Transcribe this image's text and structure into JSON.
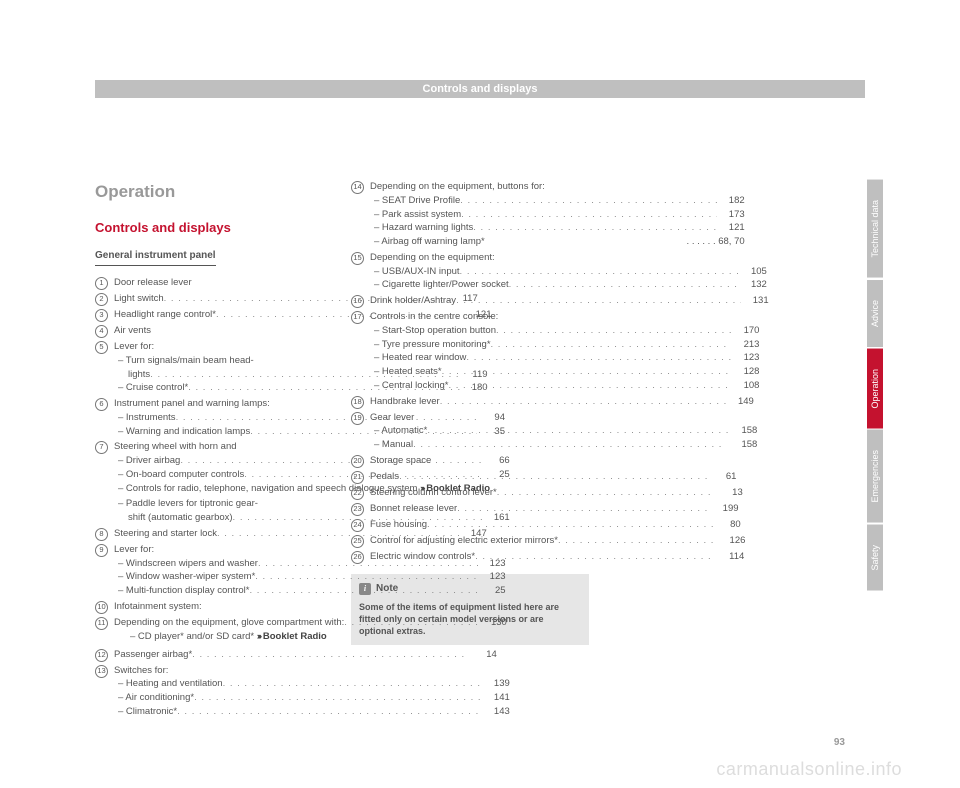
{
  "header": "Controls and displays",
  "headings": {
    "h1": "Operation",
    "h2": "Controls and displays",
    "h3": "General instrument panel"
  },
  "tabs": [
    {
      "label": "Technical data",
      "active": false
    },
    {
      "label": "Advice",
      "active": false
    },
    {
      "label": "Operation",
      "active": true
    },
    {
      "label": "Emergencies",
      "active": false
    },
    {
      "label": "Safety",
      "active": false
    }
  ],
  "note": {
    "title": "Note",
    "icon": "i",
    "body": "Some of the items of equipment listed here are fitted only on certain model versions or are optional extras."
  },
  "page_number": "93",
  "watermark": "carmanualsonline.info",
  "booklet_ref": "Booklet Radio",
  "items": [
    {
      "n": "1",
      "text": "Door release lever"
    },
    {
      "n": "2",
      "text": "Light switch",
      "page": "117"
    },
    {
      "n": "3",
      "text": "Headlight range control*",
      "page": "121"
    },
    {
      "n": "4",
      "text": "Air vents"
    },
    {
      "n": "5",
      "text": "Lever for:",
      "subs": [
        {
          "pre": "– Turn signals/main beam head-",
          "text": "lights",
          "page": "119"
        },
        {
          "text": "– Cruise control*",
          "page": "180"
        }
      ]
    },
    {
      "n": "6",
      "text": "Instrument panel and warning lamps:",
      "subs": [
        {
          "text": "– Instruments",
          "page": "94"
        },
        {
          "text": "– Warning and indication lamps",
          "page": "35"
        }
      ]
    },
    {
      "n": "7",
      "text": "Steering wheel with horn and",
      "subs": [
        {
          "text": "– Driver airbag",
          "page": "66"
        },
        {
          "text": "– On-board computer controls",
          "page": "25"
        },
        {
          "plain": "– Controls for radio, telephone, navigation and speech dialogue system ",
          "booklet": true
        },
        {
          "pre": "– Paddle levers for tiptronic gear-",
          "text": "shift (automatic gearbox)",
          "page": "161"
        }
      ]
    },
    {
      "n": "8",
      "text": "Steering and starter lock",
      "page": "147"
    },
    {
      "n": "9",
      "text": "Lever for:",
      "subs": [
        {
          "text": "– Windscreen wipers and washer",
          "page": "123"
        },
        {
          "text": "– Window washer-wiper system*",
          "page": "123"
        },
        {
          "text": "– Multi-function display control*",
          "page": "25"
        }
      ]
    },
    {
      "n": "10",
      "text": "Infotainment system:"
    },
    {
      "n": "11",
      "text": "Depending on the equipment, glove compartment with:",
      "page": "130",
      "subs": [
        {
          "plain": "– CD player* and/or SD card* ",
          "booklet": true,
          "indent": true
        }
      ]
    },
    {
      "n": "12",
      "text": "Passenger airbag*",
      "page": "14"
    },
    {
      "n": "13",
      "text": "Switches for:",
      "subs": [
        {
          "text": "– Heating and ventilation",
          "page": "139"
        },
        {
          "text": "– Air conditioning*",
          "page": "141"
        },
        {
          "text": "– Climatronic*",
          "page": "143"
        }
      ]
    },
    {
      "n": "14",
      "text": "Depending on the equipment, but­tons for:",
      "subs": [
        {
          "text": "– SEAT Drive Profile",
          "page": "182"
        },
        {
          "text": "– Park assist system",
          "page": "173"
        },
        {
          "text": "– Hazard warning lights",
          "page": "121"
        },
        {
          "text": "– Airbag off warning lamp*",
          "page": "68, 70",
          "nodots": true
        }
      ]
    },
    {
      "n": "15",
      "text": "Depending on the equipment:",
      "subs": [
        {
          "text": "– USB/AUX-IN input",
          "page": "105"
        },
        {
          "text": "– Cigarette lighter/Power socket",
          "page": "132"
        }
      ]
    },
    {
      "n": "16",
      "text": "Drink holder/Ashtray",
      "page": "131"
    },
    {
      "n": "17",
      "text": "Controls in the centre console:",
      "subs": [
        {
          "text": "– Start-Stop operation button",
          "page": "170"
        },
        {
          "text": "– Tyre pressure monitoring*",
          "page": "213"
        },
        {
          "text": "– Heated rear window",
          "page": "123"
        },
        {
          "text": "– Heated seats*",
          "page": "128"
        },
        {
          "text": "– Central locking*",
          "page": "108"
        }
      ]
    },
    {
      "n": "18",
      "text": "Handbrake lever",
      "page": "149"
    },
    {
      "n": "19",
      "text": "Gear lever",
      "subs": [
        {
          "text": "– Automatic*",
          "page": "158"
        },
        {
          "text": "– Manual",
          "page": "158"
        }
      ]
    },
    {
      "n": "20",
      "text": "Storage space"
    },
    {
      "n": "21",
      "text": "Pedals",
      "page": "61"
    },
    {
      "n": "22",
      "text": "Steering column control lever*",
      "page": "13"
    },
    {
      "n": "23",
      "text": "Bonnet release lever",
      "page": "199"
    },
    {
      "n": "24",
      "text": "Fuse housing",
      "page": "80"
    },
    {
      "n": "25",
      "text": "Control for adjusting electric exteri­or mirrors*",
      "page": "126"
    },
    {
      "n": "26",
      "text": "Electric window controls*",
      "page": "114"
    }
  ]
}
